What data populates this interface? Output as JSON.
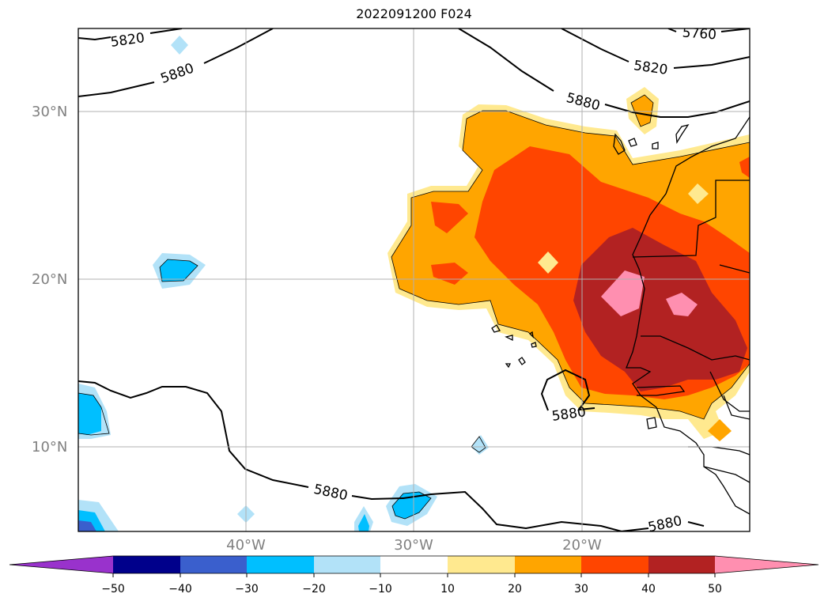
{
  "title": "2022091200 F024",
  "lat_labels": [
    "30°N",
    "20°N",
    "10°N"
  ],
  "lon_labels": [
    "40°W",
    "30°W",
    "20°W"
  ],
  "contour_labels": [
    "5820",
    "5880",
    "5760",
    "5820",
    "5880",
    "5880",
    "5880",
    "5880"
  ],
  "colorbar": {
    "ticks": [
      "−50",
      "−40",
      "−30",
      "−20",
      "−10",
      "10",
      "20",
      "30",
      "40",
      "50"
    ],
    "colors": [
      "#9932cc",
      "#00008b",
      "#3a5fcd",
      "#00bfff",
      "#b2e2f8",
      "#ffffff",
      "#ffe98f",
      "#ffa500",
      "#ff4500",
      "#b22222",
      "#ff8fb0"
    ]
  }
}
